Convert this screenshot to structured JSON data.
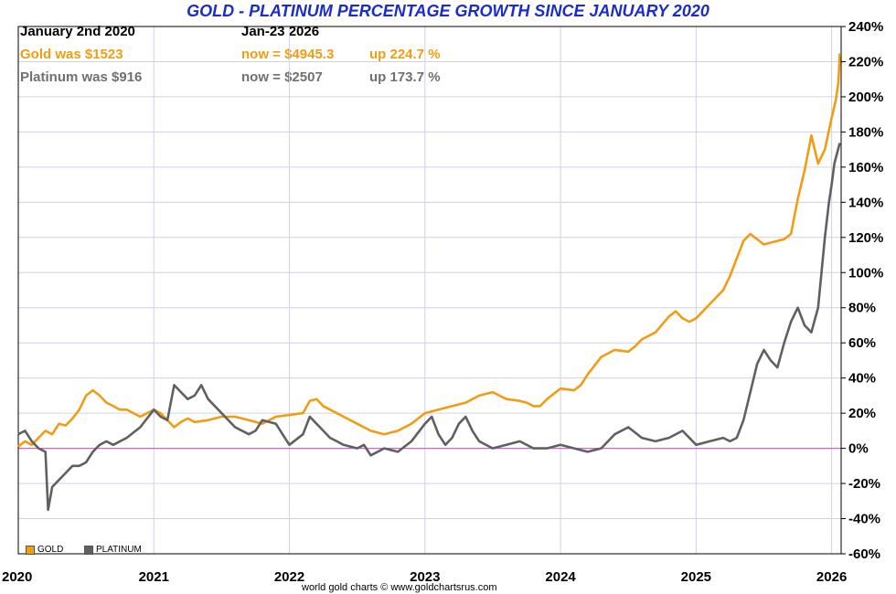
{
  "chart_data": {
    "type": "line",
    "title": "GOLD - PLATINUM PERCENTAGE GROWTH SINCE JANUARY 2020",
    "header": {
      "start_date": "January 2nd 2020",
      "end_date": "Jan-23  2026",
      "gold": {
        "was": "Gold was $1523",
        "now": "now = $4945.3",
        "up": "up 224.7 %"
      },
      "platinum": {
        "was": "Platinum was $916",
        "now": "now = $2507",
        "up": "up 173.7 %"
      }
    },
    "x_ticks": [
      "2020",
      "2021",
      "2022",
      "2023",
      "2024",
      "2025",
      "2026"
    ],
    "y_ticks": [
      "240%",
      "220%",
      "200%",
      "180%",
      "160%",
      "140%",
      "120%",
      "100%",
      "80%",
      "60%",
      "40%",
      "20%",
      "0%",
      "-20%",
      "-40%",
      "-60%"
    ],
    "ylim": [
      -60,
      240
    ],
    "xlim": [
      2020.0,
      2026.07
    ],
    "grid": true,
    "legend_placement": "bottom-left",
    "credit": "world gold charts © www.goldchartsrus.com",
    "colors": {
      "gold": "#f39c12",
      "platinum": "#606060",
      "zero_line": "#cc66cc",
      "grid": "#d0d0e8"
    },
    "series": [
      {
        "name": "GOLD",
        "color": "#f39c12",
        "x": [
          2020.0,
          2020.05,
          2020.1,
          2020.15,
          2020.2,
          2020.25,
          2020.3,
          2020.35,
          2020.4,
          2020.45,
          2020.5,
          2020.55,
          2020.6,
          2020.65,
          2020.7,
          2020.75,
          2020.8,
          2020.9,
          2021.0,
          2021.05,
          2021.1,
          2021.15,
          2021.2,
          2021.25,
          2021.3,
          2021.4,
          2021.5,
          2021.6,
          2021.7,
          2021.8,
          2021.9,
          2022.0,
          2022.1,
          2022.15,
          2022.2,
          2022.25,
          2022.3,
          2022.35,
          2022.4,
          2022.5,
          2022.6,
          2022.7,
          2022.8,
          2022.9,
          2023.0,
          2023.1,
          2023.2,
          2023.3,
          2023.4,
          2023.5,
          2023.6,
          2023.7,
          2023.75,
          2023.8,
          2023.85,
          2023.9,
          2024.0,
          2024.1,
          2024.15,
          2024.2,
          2024.3,
          2024.4,
          2024.5,
          2024.55,
          2024.6,
          2024.7,
          2024.8,
          2024.85,
          2024.9,
          2024.95,
          2025.0,
          2025.1,
          2025.2,
          2025.25,
          2025.3,
          2025.35,
          2025.4,
          2025.5,
          2025.6,
          2025.65,
          2025.7,
          2025.75,
          2025.8,
          2025.85,
          2025.9,
          2025.95,
          2026.0,
          2026.03,
          2026.05,
          2026.06
        ],
        "values": [
          1,
          4,
          2,
          6,
          10,
          8,
          14,
          13,
          17,
          22,
          30,
          33,
          30,
          26,
          24,
          22,
          22,
          18,
          22,
          20,
          16,
          12,
          15,
          17,
          15,
          16,
          18,
          18,
          16,
          14,
          18,
          19,
          20,
          27,
          28,
          24,
          22,
          20,
          18,
          14,
          10,
          8,
          10,
          14,
          20,
          22,
          24,
          26,
          30,
          32,
          28,
          27,
          26,
          24,
          24,
          28,
          34,
          33,
          36,
          42,
          52,
          56,
          55,
          58,
          62,
          66,
          75,
          78,
          74,
          72,
          74,
          82,
          90,
          98,
          108,
          118,
          122,
          116,
          118,
          119,
          122,
          142,
          158,
          178,
          162,
          170,
          188,
          198,
          208,
          224.7
        ]
      },
      {
        "name": "PLATINUM",
        "color": "#606060",
        "x": [
          2020.0,
          2020.05,
          2020.1,
          2020.15,
          2020.2,
          2020.22,
          2020.25,
          2020.3,
          2020.35,
          2020.4,
          2020.45,
          2020.5,
          2020.55,
          2020.6,
          2020.65,
          2020.7,
          2020.8,
          2020.9,
          2021.0,
          2021.05,
          2021.1,
          2021.15,
          2021.2,
          2021.25,
          2021.3,
          2021.35,
          2021.4,
          2021.5,
          2021.6,
          2021.7,
          2021.75,
          2021.8,
          2021.9,
          2022.0,
          2022.1,
          2022.15,
          2022.2,
          2022.25,
          2022.3,
          2022.35,
          2022.4,
          2022.5,
          2022.55,
          2022.6,
          2022.7,
          2022.8,
          2022.9,
          2023.0,
          2023.05,
          2023.1,
          2023.15,
          2023.2,
          2023.25,
          2023.3,
          2023.35,
          2023.4,
          2023.5,
          2023.6,
          2023.7,
          2023.8,
          2023.9,
          2024.0,
          2024.1,
          2024.2,
          2024.3,
          2024.4,
          2024.5,
          2024.6,
          2024.7,
          2024.8,
          2024.9,
          2025.0,
          2025.1,
          2025.2,
          2025.25,
          2025.3,
          2025.35,
          2025.4,
          2025.45,
          2025.5,
          2025.55,
          2025.6,
          2025.65,
          2025.7,
          2025.75,
          2025.8,
          2025.85,
          2025.9,
          2025.95,
          2025.98,
          2026.0,
          2026.02,
          2026.04,
          2026.06
        ],
        "values": [
          8,
          10,
          4,
          0,
          -2,
          -35,
          -22,
          -18,
          -14,
          -10,
          -10,
          -8,
          -2,
          2,
          4,
          2,
          6,
          12,
          22,
          18,
          16,
          36,
          32,
          28,
          30,
          36,
          28,
          20,
          12,
          8,
          10,
          16,
          14,
          2,
          8,
          18,
          14,
          10,
          6,
          4,
          2,
          0,
          2,
          -4,
          0,
          -2,
          4,
          14,
          18,
          8,
          2,
          6,
          14,
          18,
          10,
          4,
          0,
          2,
          4,
          0,
          0,
          2,
          0,
          -2,
          0,
          8,
          12,
          6,
          4,
          6,
          10,
          2,
          4,
          6,
          4,
          6,
          16,
          32,
          48,
          56,
          50,
          46,
          60,
          72,
          80,
          70,
          66,
          80,
          120,
          140,
          150,
          162,
          168,
          173.7
        ]
      }
    ]
  }
}
